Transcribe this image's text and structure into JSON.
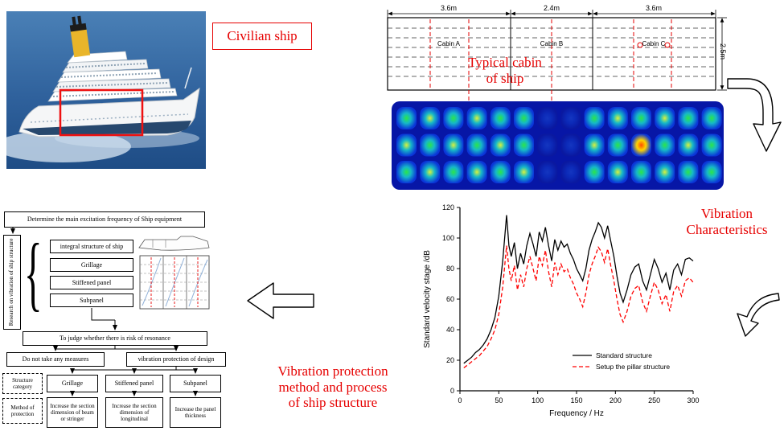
{
  "colors": {
    "accent_red": "#e60000",
    "heatmap_blue": "#0716a6"
  },
  "ship_photo": {
    "label": "Civilian ship"
  },
  "cabin_plan": {
    "title_lines": [
      "Typical cabin",
      "of ship"
    ],
    "dims_top": [
      "3.6m",
      "2.4m",
      "3.6m"
    ],
    "dim_right": "2.5m",
    "cabins": [
      "Cabin A",
      "Cabin B",
      "Cabin C"
    ]
  },
  "labels": {
    "vibration_lines": [
      "Vibration",
      "Characteristics"
    ],
    "protection_lines": [
      "Vibration protection",
      "method and process",
      "of ship structure"
    ]
  },
  "flowchart": {
    "top_box": "Determine the main excitation frequency of Ship equipment",
    "side_box": "Research on vibration of ship structure",
    "structure_items": [
      "integral structure of ship",
      "Grillage",
      "Stiffened panel",
      "Subpanel"
    ],
    "judge_box": "To judge whether there is risk of resonance",
    "no_measures_box": "Do not take any measures",
    "protection_box": "vibration protection of design",
    "category_label": "Structure category",
    "method_label": "Method of protection",
    "category_items": [
      "Grillage",
      "Stiffened panel",
      "Subpanel"
    ],
    "method_items": [
      "Increase the section dimension of beam or stringer",
      "Increase the section dimension of longitudinal",
      "Increase the panel thickness"
    ]
  },
  "chart_data": {
    "type": "line",
    "xlabel": "Frequency / Hz",
    "ylabel": "Standard velocity stage /dB",
    "xlim": [
      0,
      300
    ],
    "ylim": [
      0,
      120
    ],
    "xticks": [
      0,
      50,
      100,
      150,
      200,
      250,
      300
    ],
    "yticks": [
      0,
      20,
      40,
      60,
      80,
      100,
      120
    ],
    "legend_position": "lower right",
    "x": [
      5,
      10,
      15,
      20,
      25,
      30,
      35,
      40,
      45,
      50,
      55,
      60,
      63,
      66,
      70,
      74,
      78,
      82,
      86,
      90,
      94,
      98,
      102,
      106,
      110,
      114,
      118,
      122,
      126,
      130,
      134,
      138,
      142,
      146,
      150,
      154,
      158,
      162,
      166,
      170,
      174,
      178,
      182,
      186,
      190,
      194,
      198,
      202,
      206,
      210,
      215,
      220,
      225,
      230,
      235,
      240,
      245,
      250,
      255,
      260,
      265,
      270,
      275,
      280,
      285,
      290,
      295,
      300
    ],
    "series": [
      {
        "name": "Standard structure",
        "color": "#000000",
        "dash": false,
        "y": [
          18,
          20,
          22,
          25,
          27,
          30,
          34,
          40,
          48,
          62,
          85,
          115,
          95,
          88,
          97,
          80,
          90,
          83,
          95,
          103,
          96,
          88,
          104,
          98,
          107,
          95,
          85,
          99,
          92,
          98,
          94,
          96,
          90,
          86,
          80,
          76,
          72,
          80,
          92,
          99,
          104,
          110,
          107,
          100,
          108,
          98,
          88,
          75,
          64,
          58,
          66,
          76,
          81,
          83,
          72,
          66,
          76,
          86,
          80,
          71,
          77,
          66,
          79,
          83,
          76,
          86,
          87,
          85
        ]
      },
      {
        "name": "Setup the pillar structure",
        "color": "#ff0000",
        "dash": true,
        "y": [
          15,
          17,
          19,
          21,
          23,
          26,
          29,
          34,
          40,
          50,
          68,
          95,
          80,
          72,
          82,
          66,
          76,
          68,
          80,
          88,
          80,
          72,
          88,
          82,
          92,
          78,
          68,
          84,
          76,
          83,
          78,
          80,
          74,
          70,
          64,
          60,
          55,
          64,
          76,
          83,
          88,
          94,
          91,
          84,
          93,
          82,
          72,
          60,
          50,
          45,
          52,
          62,
          67,
          69,
          58,
          52,
          62,
          71,
          66,
          57,
          63,
          52,
          65,
          69,
          62,
          72,
          74,
          71
        ]
      }
    ]
  }
}
